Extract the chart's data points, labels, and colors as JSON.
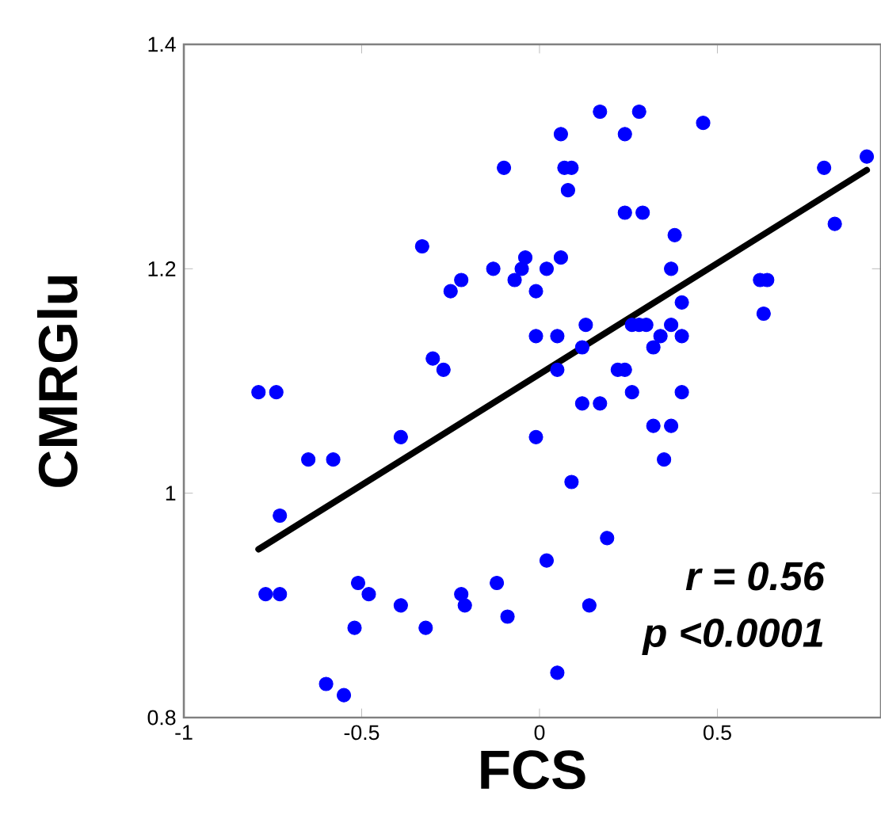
{
  "chart_data": {
    "type": "scatter",
    "xlabel": "FCS",
    "ylabel": "CMRGlu",
    "xlim": [
      -1,
      0.96
    ],
    "ylim": [
      0.8,
      1.4
    ],
    "xticks": [
      {
        "value": -1,
        "label": "-1"
      },
      {
        "value": -0.5,
        "label": "-0.5"
      },
      0,
      0.5
    ],
    "yticks": [
      0.8,
      1,
      1.2,
      1.4
    ],
    "marker": "circle",
    "annotations": [
      "r = 0.56",
      "p <0.0001"
    ],
    "series": [
      {
        "color": "#0000ff",
        "x": [
          -0.1,
          -0.33,
          -0.04,
          -0.05,
          -0.13,
          -0.22,
          -0.07,
          -0.25,
          -0.01,
          -0.01,
          -0.3,
          -0.27,
          -0.79,
          -0.74,
          0.17,
          0.28,
          0.06,
          0.24,
          0.46,
          0.07,
          0.09,
          0.08,
          0.8,
          0.92,
          0.24,
          0.29,
          0.38,
          0.83,
          0.06,
          0.02,
          0.37,
          0.62,
          0.64,
          0.63,
          0.4,
          0.05,
          0.13,
          0.26,
          0.28,
          0.3,
          0.37,
          0.34,
          0.4,
          0.32,
          0.12,
          0.22,
          0.24,
          0.05,
          0.26,
          0.4,
          0.12,
          0.17,
          -0.01,
          0.32,
          0.37,
          0.35,
          0.09,
          0.19,
          0.02,
          0.14,
          0.05,
          -0.65,
          -0.58,
          -0.39,
          -0.73,
          -0.77,
          -0.73,
          -0.51,
          -0.48,
          -0.39,
          -0.52,
          -0.32,
          -0.22,
          -0.21,
          -0.12,
          -0.09,
          -0.6,
          -0.55
        ],
        "values": [
          1.29,
          1.22,
          1.21,
          1.2,
          1.2,
          1.19,
          1.19,
          1.18,
          1.18,
          1.14,
          1.12,
          1.11,
          1.09,
          1.09,
          1.34,
          1.34,
          1.32,
          1.32,
          1.33,
          1.29,
          1.29,
          1.27,
          1.29,
          1.3,
          1.25,
          1.25,
          1.23,
          1.24,
          1.21,
          1.2,
          1.2,
          1.19,
          1.19,
          1.16,
          1.17,
          1.14,
          1.15,
          1.15,
          1.15,
          1.15,
          1.15,
          1.14,
          1.14,
          1.13,
          1.13,
          1.11,
          1.11,
          1.11,
          1.09,
          1.09,
          1.08,
          1.08,
          1.05,
          1.06,
          1.06,
          1.03,
          1.01,
          0.96,
          0.94,
          0.9,
          0.84,
          1.03,
          1.03,
          1.05,
          0.98,
          0.91,
          0.91,
          0.92,
          0.91,
          0.9,
          0.88,
          0.88,
          0.91,
          0.9,
          0.92,
          0.89,
          0.83,
          0.82
        ]
      },
      {
        "type": "line",
        "marker": "none",
        "color": "#000000",
        "x": [
          -0.79,
          0.92
        ],
        "values": [
          0.95,
          1.288
        ]
      }
    ]
  }
}
